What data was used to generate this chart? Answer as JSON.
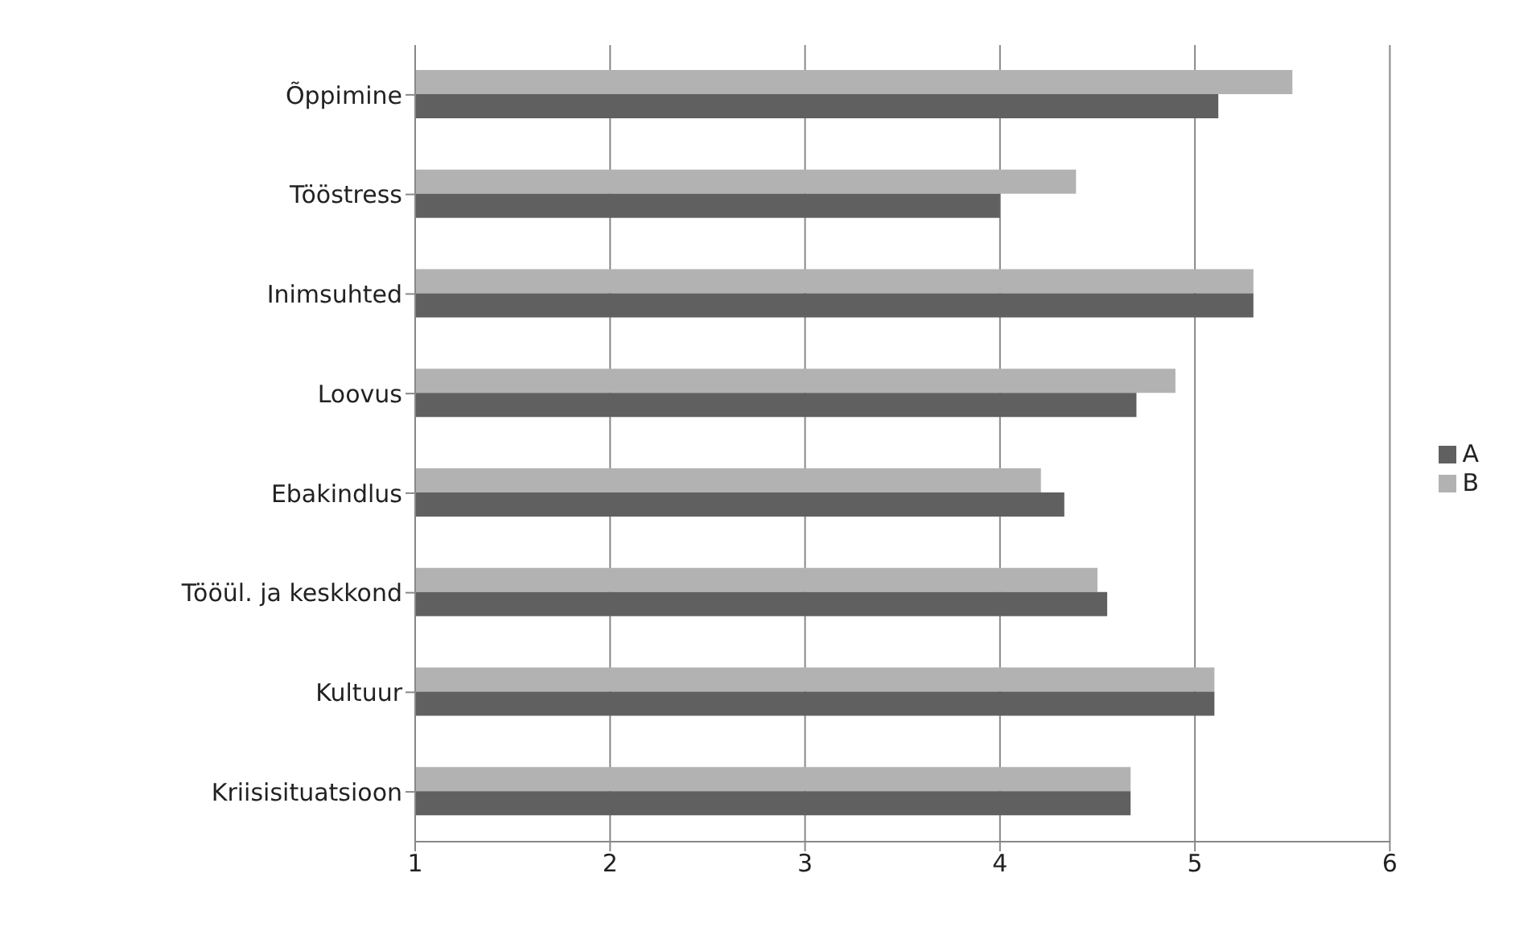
{
  "chart_data": {
    "type": "bar",
    "orientation": "horizontal",
    "categories": [
      "Õppimine",
      "Tööstress",
      "Inimsuhted",
      "Loovus",
      "Ebakindlus",
      "Tööül. ja keskkond",
      "Kultuur",
      "Kriisisituatsioon"
    ],
    "series": [
      {
        "name": "B",
        "color": "#b2b2b2",
        "values": [
          5.5,
          4.39,
          5.3,
          4.9,
          4.21,
          4.5,
          5.1,
          4.67
        ]
      },
      {
        "name": "A",
        "color": "#606060",
        "values": [
          5.12,
          4.0,
          5.3,
          4.7,
          4.33,
          4.55,
          5.1,
          4.67
        ]
      }
    ],
    "xlim": [
      1,
      6
    ],
    "xticks": [
      1,
      2,
      3,
      4,
      5,
      6
    ],
    "grid": "x",
    "legend": "right"
  }
}
